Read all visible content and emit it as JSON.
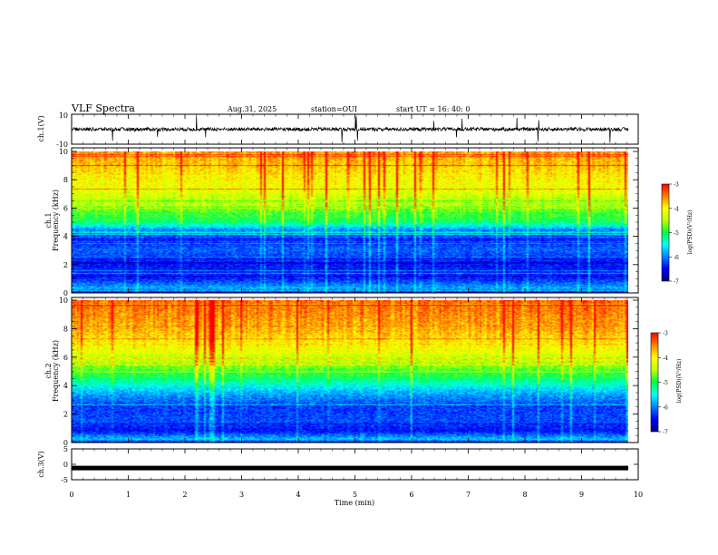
{
  "header": {
    "title": "VLF Spectra",
    "date": "Aug.31, 2025",
    "station": "station=OUI",
    "start": "start  UT =   16: 40: 0"
  },
  "colorscale": {
    "stops": [
      "#00007f",
      "#0000ff",
      "#0080ff",
      "#00ffff",
      "#00ff40",
      "#c0ff00",
      "#ffff00",
      "#ff8000",
      "#ff0000",
      "#ff9a9a",
      "#ffffff"
    ]
  },
  "chart_data": [
    {
      "type": "line",
      "panel": "ch1-waveform",
      "ylabel": "ch.1(V)",
      "ylim": [
        -10,
        10
      ],
      "ytick_labels": [
        "10",
        "-10"
      ],
      "xlim": [
        0,
        10
      ],
      "note": "dense black waveform trace centered near 0 V with sporadic spikes"
    },
    {
      "type": "heatmap",
      "panel": "ch1-spectrogram",
      "ylabel_top": "ch.1",
      "ylabel": "Frequency (kHz)",
      "ylim": [
        0,
        10
      ],
      "xlim": [
        0,
        10
      ],
      "ytick_labels": [
        "0",
        "2",
        "4",
        "6",
        "8",
        "10"
      ],
      "colorbar": {
        "label": "log(PSD)(V²/Hz)",
        "range": [
          -7,
          -3
        ],
        "tick_labels": [
          "-3",
          "-4",
          "-5",
          "-6",
          "-7"
        ]
      },
      "profile": [
        {
          "f": 10,
          "level": 0.85
        },
        {
          "f": 8,
          "level": 0.74
        },
        {
          "f": 7,
          "level": 0.68
        },
        {
          "f": 6,
          "level": 0.58
        },
        {
          "f": 5,
          "level": 0.48
        },
        {
          "f": 4.5,
          "level": 0.28
        },
        {
          "f": 3.8,
          "level": 0.15
        },
        {
          "f": 3,
          "level": 0.22
        },
        {
          "f": 2,
          "level": 0.14
        },
        {
          "f": 1,
          "level": 0.15
        },
        {
          "f": 0.3,
          "level": 0.3
        },
        {
          "f": 0,
          "level": 0.15
        }
      ]
    },
    {
      "type": "heatmap",
      "panel": "ch2-spectrogram",
      "ylabel_top": "ch.2",
      "ylabel": "Frequency (kHz)",
      "ylim": [
        0,
        10
      ],
      "xlim": [
        0,
        10
      ],
      "ytick_labels": [
        "0",
        "2",
        "4",
        "6",
        "8",
        "10"
      ],
      "colorbar": {
        "label": "log(PSD)(V²/Hz)",
        "range": [
          -7,
          -3
        ],
        "tick_labels": [
          "-3",
          "-4",
          "-5",
          "-6",
          "-7"
        ]
      },
      "profile": [
        {
          "f": 10,
          "level": 0.9
        },
        {
          "f": 8,
          "level": 0.83
        },
        {
          "f": 6.5,
          "level": 0.72
        },
        {
          "f": 5.5,
          "level": 0.6
        },
        {
          "f": 4.5,
          "level": 0.48
        },
        {
          "f": 3.5,
          "level": 0.3
        },
        {
          "f": 2.5,
          "level": 0.18
        },
        {
          "f": 1.5,
          "level": 0.2
        },
        {
          "f": 0.8,
          "level": 0.13
        },
        {
          "f": 0.2,
          "level": 0.32
        },
        {
          "f": 0,
          "level": 0.15
        }
      ]
    },
    {
      "type": "line",
      "panel": "ch3-waveform",
      "ylabel": "ch.3(V)",
      "ylim": [
        -5,
        5
      ],
      "ytick_labels": [
        "5",
        "0",
        "-5"
      ],
      "xlim": [
        0,
        10
      ],
      "level": -1.2
    }
  ],
  "xaxis": {
    "label": "Time (min)",
    "tick_labels": [
      "0",
      "1",
      "2",
      "3",
      "4",
      "5",
      "6",
      "7",
      "8",
      "9",
      "10"
    ]
  }
}
